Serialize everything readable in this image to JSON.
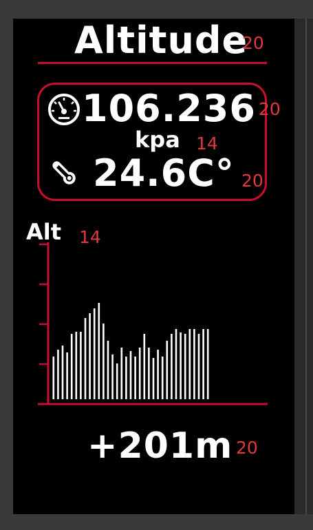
{
  "header": {
    "title": "Altitude",
    "title_size": "20"
  },
  "readings": {
    "pressure_value": "106.236",
    "pressure_size": "20",
    "pressure_unit": "kpa",
    "unit_size": "14",
    "temperature_value": "24.6C°",
    "temperature_size": "20"
  },
  "icons": {
    "pressure": "gauge-icon",
    "temperature": "thermometer-icon"
  },
  "graph": {
    "label": "Alt",
    "label_size": "14"
  },
  "footer": {
    "altitude_delta": "+201m",
    "delta_size": "20"
  },
  "colors": {
    "accent": "#c8102e",
    "size_text": "#e03a3e",
    "text": "#ffffff",
    "background": "#000000"
  },
  "chart_data": {
    "type": "bar",
    "values": [
      62,
      72,
      78,
      68,
      95,
      98,
      98,
      118,
      125,
      132,
      140,
      110,
      85,
      65,
      52,
      75,
      62,
      70,
      62,
      75,
      95,
      75,
      60,
      72,
      62,
      85,
      95,
      102,
      97,
      95,
      102,
      102,
      95,
      102,
      102
    ],
    "ylim": [
      0,
      235
    ],
    "y_ticks": 4,
    "grid": false,
    "xlabel": "",
    "ylabel": ""
  }
}
